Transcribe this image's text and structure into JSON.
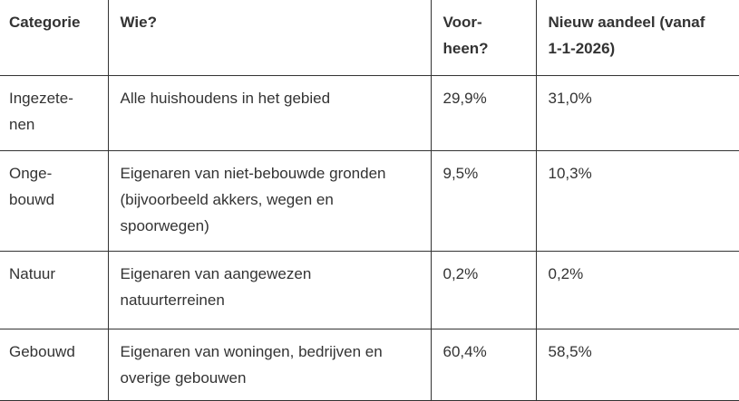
{
  "table": {
    "header": {
      "categorie": "Categorie",
      "wie": "Wie?",
      "voorheen": "Voor-\nheen?",
      "nieuw": "Nieuw aandeel (vanaf\n1-1-2026)"
    },
    "rows": [
      {
        "categorie": "Ingezete-\nnen",
        "wie": "Alle huishoudens in het gebied",
        "voorheen": "29,9%",
        "nieuw": "31,0%"
      },
      {
        "categorie": "Onge-\nbouwd",
        "wie": "Eigenaren van niet-bebouwde gronden\n(bijvoorbeeld akkers, wegen en\nspoorwegen)",
        "voorheen": "9,5%",
        "nieuw": "10,3%"
      },
      {
        "categorie": "Natuur",
        "wie": "Eigenaren van aangewezen\nnatuurterreinen",
        "voorheen": "0,2%",
        "nieuw": "0,2%"
      },
      {
        "categorie": "Gebouwd",
        "wie": "Eigenaren van woningen, bedrijven en\noverige gebouwen",
        "voorheen": "60,4%",
        "nieuw": "58,5%"
      }
    ],
    "colors": {
      "text": "#333333",
      "border": "#333333",
      "background": "#ffffff"
    }
  }
}
